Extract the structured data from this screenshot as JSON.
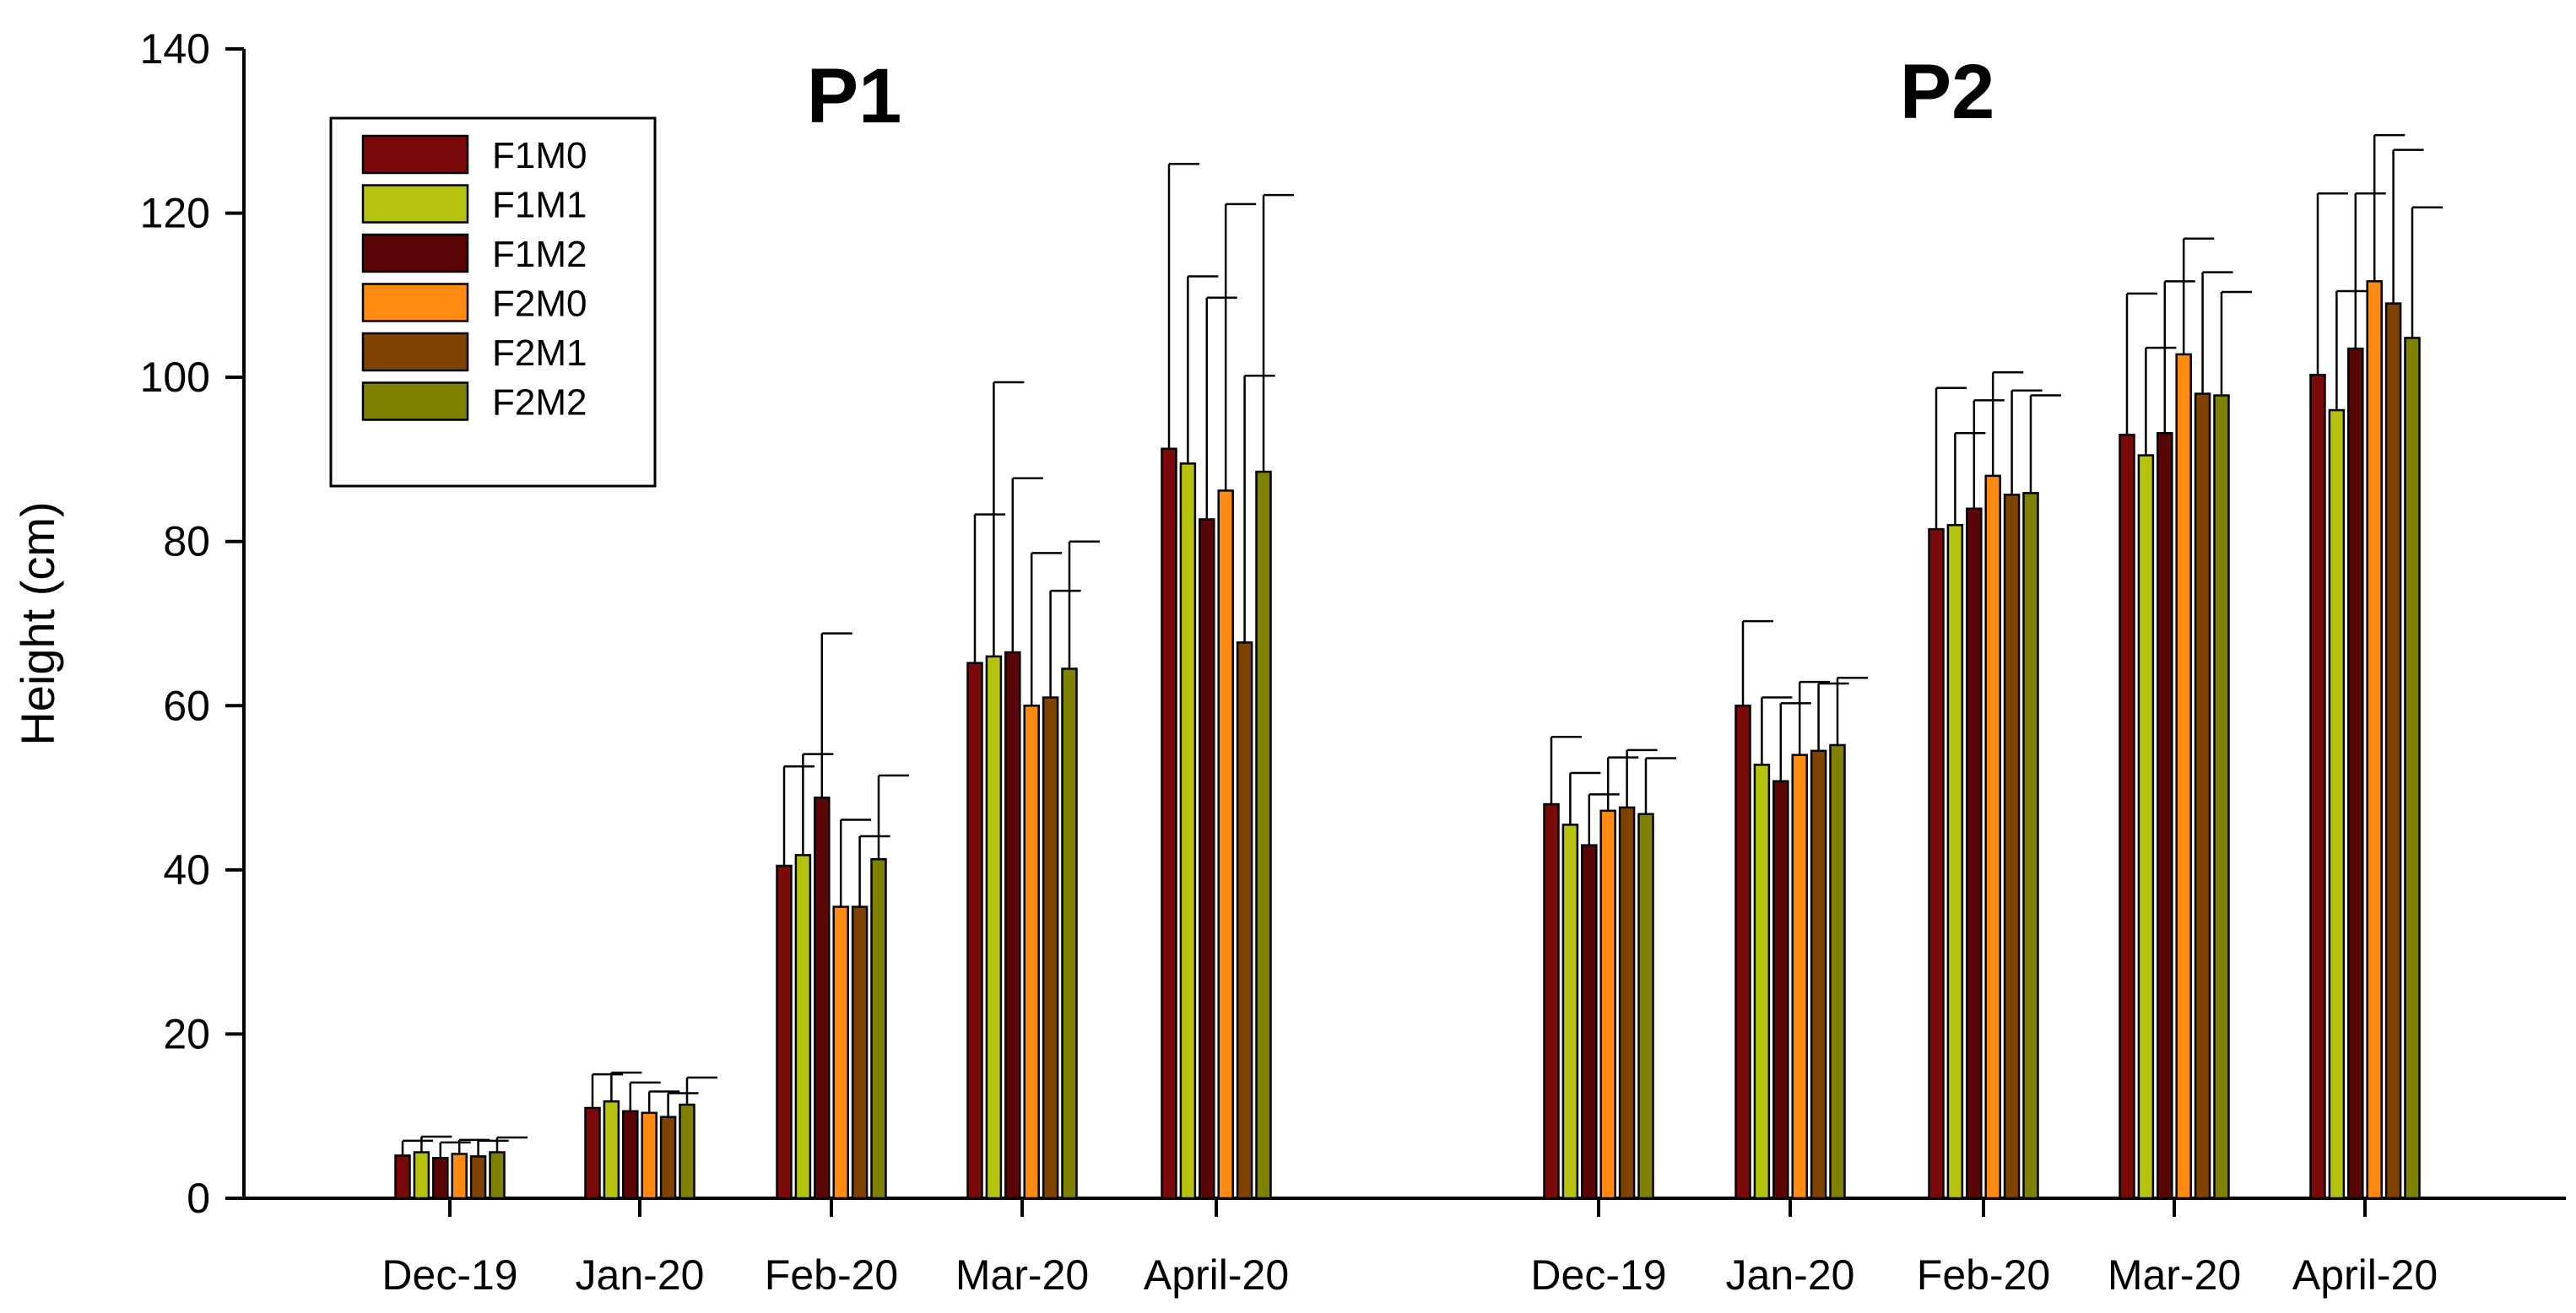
{
  "chart_data": {
    "type": "bar",
    "ylabel": "Height (cm)",
    "xlabel": "",
    "ylim": [
      0,
      140
    ],
    "yticks": [
      0,
      20,
      40,
      60,
      80,
      100,
      120,
      140
    ],
    "grid": false,
    "legend_position": "top-left",
    "series": [
      {
        "name": "F1M0",
        "color": "#7a0a0a"
      },
      {
        "name": "F1M1",
        "color": "#b5c30f"
      },
      {
        "name": "F1M2",
        "color": "#5a0606"
      },
      {
        "name": "F2M0",
        "color": "#ff8a12"
      },
      {
        "name": "F2M1",
        "color": "#7f4200"
      },
      {
        "name": "F2M2",
        "color": "#7f8200"
      }
    ],
    "panels": [
      {
        "title": "P1",
        "categories": [
          "Dec-19",
          "Jan-20",
          "Feb-20",
          "Mar-20",
          "April-20"
        ],
        "values": [
          [
            5.2,
            5.6,
            4.9,
            5.4,
            5.1,
            5.6
          ],
          [
            11.0,
            11.8,
            10.6,
            10.4,
            9.9,
            11.4
          ],
          [
            40.5,
            41.8,
            48.8,
            35.5,
            35.5,
            41.3
          ],
          [
            65.2,
            66.0,
            66.5,
            60.0,
            61.0,
            64.5
          ],
          [
            91.3,
            89.5,
            82.7,
            86.2,
            67.7,
            88.5
          ]
        ],
        "errors": [
          [
            1.8,
            1.9,
            1.9,
            1.7,
            1.9,
            1.8
          ],
          [
            4.1,
            3.5,
            3.5,
            2.6,
            2.9,
            3.3
          ],
          [
            12.1,
            12.3,
            20.0,
            10.6,
            8.6,
            10.2
          ],
          [
            18.1,
            33.4,
            21.2,
            18.6,
            13.0,
            15.5
          ],
          [
            34.7,
            22.8,
            27.0,
            34.9,
            32.5,
            33.7
          ]
        ]
      },
      {
        "title": "P2",
        "categories": [
          "Dec-19",
          "Jan-20",
          "Feb-20",
          "Mar-20",
          "April-20"
        ],
        "values": [
          [
            48.0,
            45.5,
            43.0,
            47.2,
            47.6,
            46.8
          ],
          [
            60.0,
            52.8,
            50.8,
            54.0,
            54.5,
            55.2
          ],
          [
            81.5,
            82.0,
            84.0,
            88.0,
            85.7,
            85.9
          ],
          [
            93.0,
            90.5,
            93.2,
            102.8,
            98.0,
            97.8
          ],
          [
            100.3,
            96.0,
            103.5,
            111.7,
            109.0,
            104.8
          ]
        ],
        "errors": [
          [
            8.2,
            6.3,
            6.2,
            6.5,
            7.0,
            6.8
          ],
          [
            10.3,
            8.2,
            9.5,
            8.9,
            8.2,
            8.2
          ],
          [
            17.2,
            11.2,
            13.2,
            12.6,
            12.7,
            11.9
          ],
          [
            17.2,
            13.1,
            18.5,
            14.1,
            14.8,
            12.6
          ],
          [
            22.1,
            14.5,
            18.9,
            17.8,
            18.7,
            15.9
          ]
        ]
      }
    ]
  }
}
